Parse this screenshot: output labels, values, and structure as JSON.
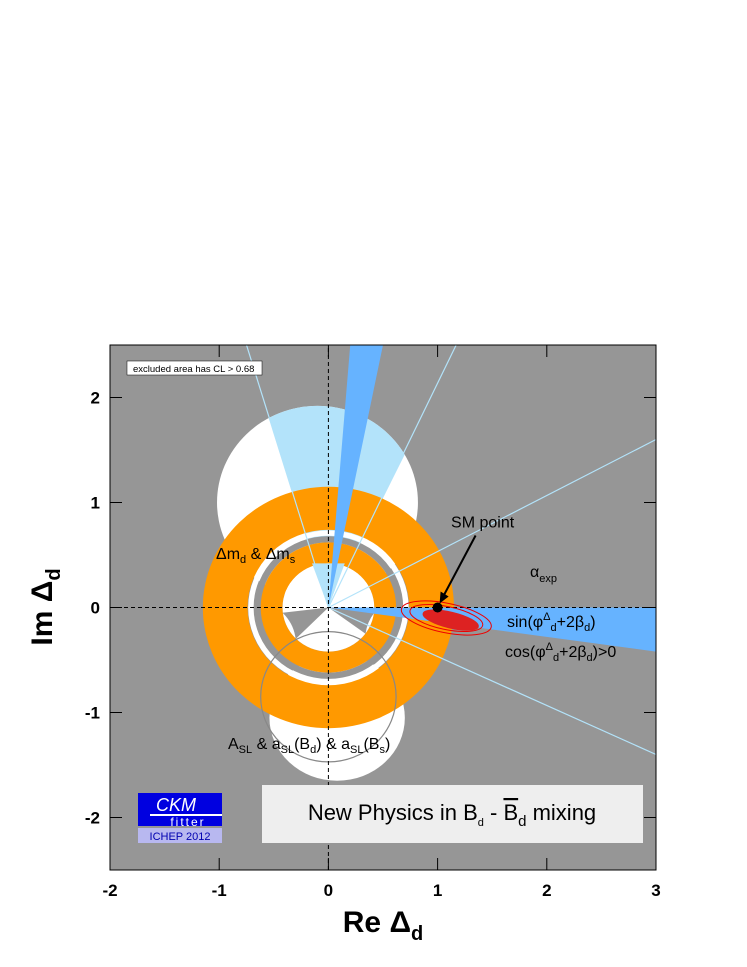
{
  "chart_data": {
    "type": "constraint",
    "x_label": [
      "Re Δ",
      "d"
    ],
    "y_label": [
      "Im Δ",
      "d"
    ],
    "xlim": [
      -2,
      3
    ],
    "ylim": [
      -2.5,
      2.5
    ],
    "xticks": [
      -2,
      -1,
      0,
      1,
      2,
      3
    ],
    "yticks": [
      -2,
      -1,
      0,
      1,
      2
    ],
    "points": [
      {
        "name": "SM point",
        "x": 1,
        "y": 0
      }
    ],
    "legend_note": "excluded area has CL > 0.68",
    "annotations": {
      "dm": [
        "Δm",
        "d",
        " & Δm",
        "s"
      ],
      "alpha": [
        "α",
        "exp"
      ],
      "sin": [
        "sin(φ",
        "Δ",
        "d",
        "+2β",
        "d",
        ")"
      ],
      "cos": [
        "cos(φ",
        "Δ",
        "d",
        "+2β",
        "d",
        ")>0"
      ],
      "asl": [
        "A",
        "SL",
        " & a",
        "SL",
        "(B",
        "d",
        ") & a",
        "SL",
        "(B",
        "s",
        ")"
      ]
    },
    "title": [
      "New Physics in B",
      "d",
      " - ",
      "B",
      "d",
      " mixing"
    ],
    "logo": {
      "name": "CKM",
      "sub": "fitter",
      "event": "ICHEP 2012"
    }
  }
}
